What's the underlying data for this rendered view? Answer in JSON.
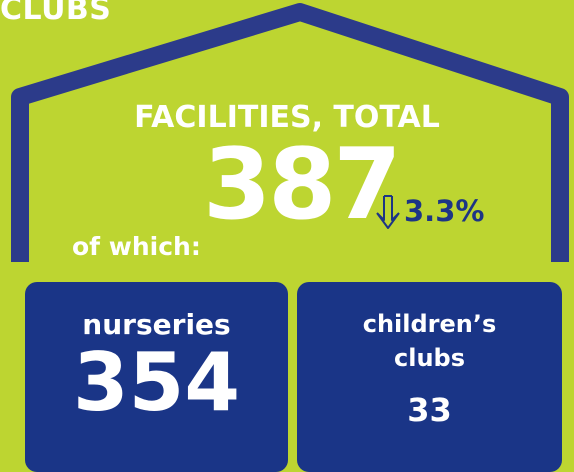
{
  "header": {
    "title": "CLUBS"
  },
  "total": {
    "label": "FACILITIES, TOTAL",
    "value": 387,
    "change": "3.3%"
  },
  "breakdown_label": "of which:",
  "items": [
    {
      "label": "nurseries",
      "value": 354
    },
    {
      "label": "children’s clubs",
      "value": 33
    }
  ]
}
